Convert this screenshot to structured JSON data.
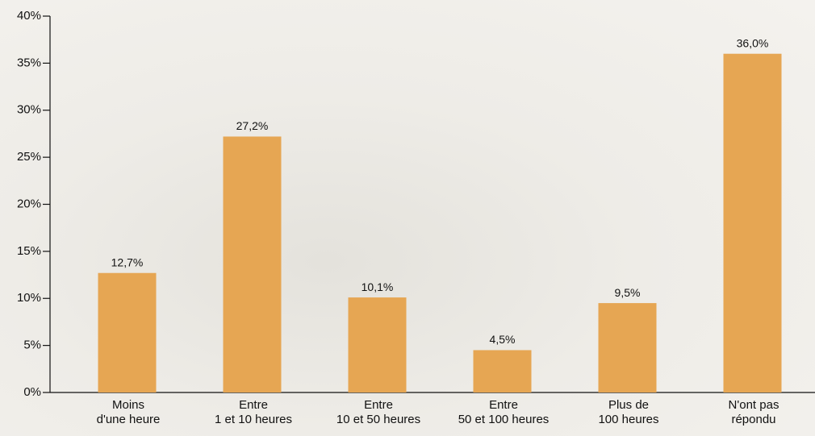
{
  "chart_data": {
    "type": "bar",
    "categories": [
      "Moins\nd'une heure",
      "Entre\n1 et 10 heures",
      "Entre\n10 et 50 heures",
      "Entre\n50 et 100 heures",
      "Plus de\n100 heures",
      "N'ont pas\nrépondu"
    ],
    "values": [
      12.7,
      27.2,
      10.1,
      4.5,
      9.5,
      36.0
    ],
    "value_labels": [
      "12,7%",
      "27,2%",
      "10,1%",
      "4,5%",
      "9,5%",
      "36,0%"
    ],
    "color": "#e6a653",
    "ylim": [
      0,
      40
    ],
    "yticks": [
      {
        "value": 0,
        "label": "0%"
      },
      {
        "value": 5,
        "label": "5%"
      },
      {
        "value": 10,
        "label": "10%"
      },
      {
        "value": 15,
        "label": "15%"
      },
      {
        "value": 20,
        "label": "20%"
      },
      {
        "value": 25,
        "label": "25%"
      },
      {
        "value": 30,
        "label": "30%"
      },
      {
        "value": 35,
        "label": "35%"
      },
      {
        "value": 40,
        "label": "40%"
      }
    ],
    "grid": false
  }
}
